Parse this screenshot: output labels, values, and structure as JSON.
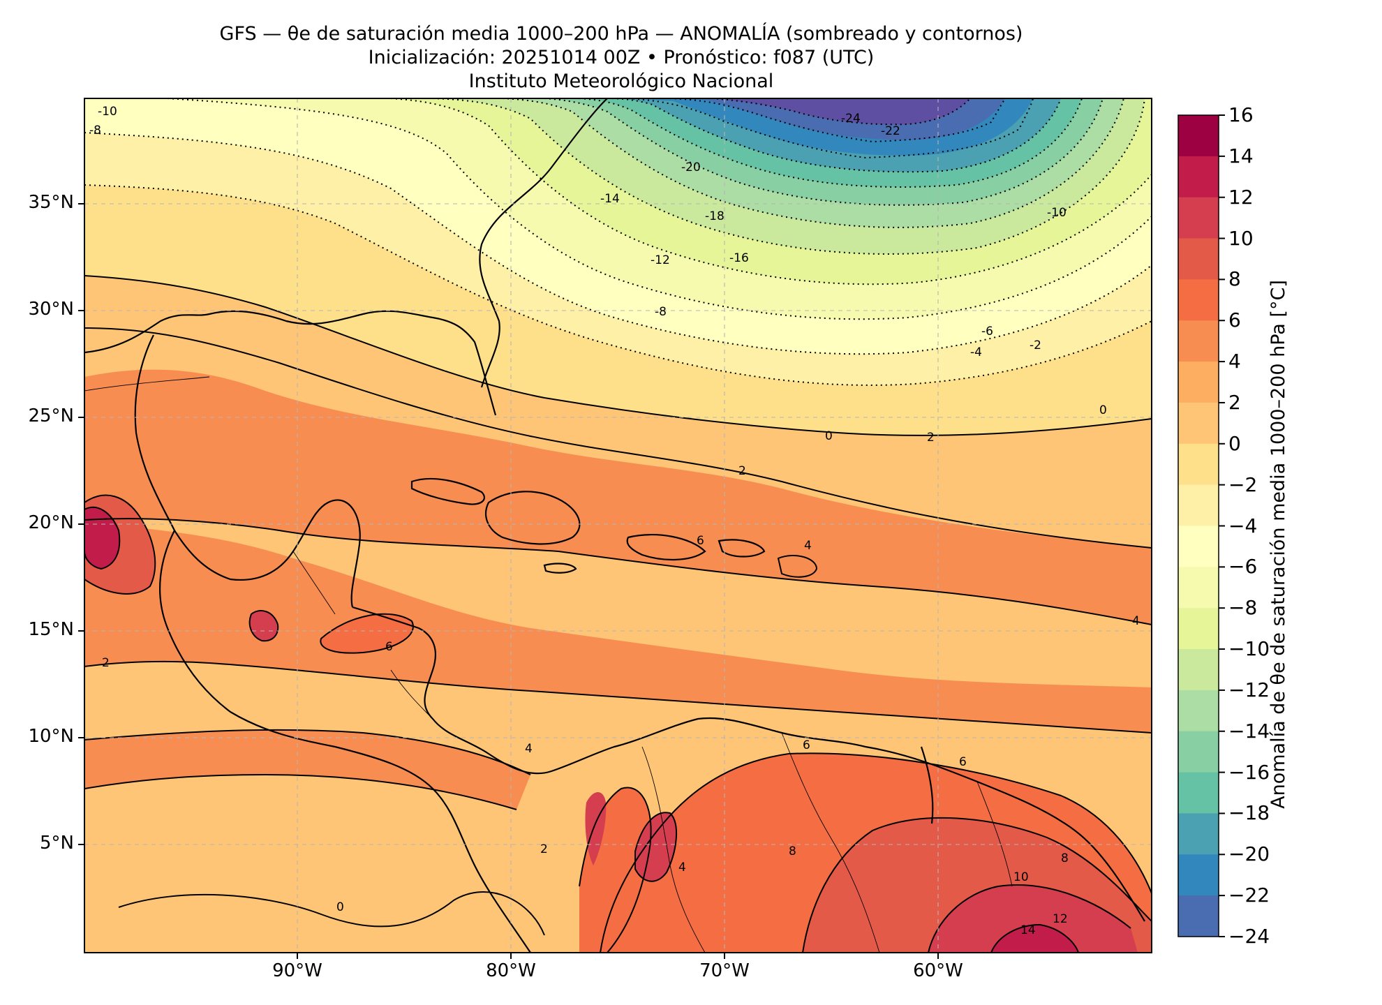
{
  "title": {
    "line1": "GFS — θe de saturación media 1000–200 hPa — ANOMALÍA (sombreado y contornos)",
    "line2": "Inicialización: 20251014 00Z   •   Pronóstico: f087 (UTC)",
    "line3": "Instituto Meteorológico Nacional"
  },
  "map": {
    "lon_range": [
      -100,
      -50
    ],
    "lat_range": [
      0,
      40
    ],
    "lon_ticks": [
      "90°W",
      "80°W",
      "70°W",
      "60°W"
    ],
    "lat_ticks": [
      "35°N",
      "30°N",
      "25°N",
      "20°N",
      "15°N",
      "10°N",
      "5°N"
    ],
    "gridlines": true
  },
  "colorbar": {
    "label": "Anomalía de θe de saturación media 1000–200 hPa [°C]",
    "min": -24,
    "max": 16,
    "step": 2,
    "tick_labels": [
      "16",
      "14",
      "12",
      "10",
      "8",
      "6",
      "4",
      "2",
      "0",
      "−2",
      "−4",
      "−6",
      "−8",
      "−10",
      "−12",
      "−14",
      "−16",
      "−18",
      "−20",
      "−22",
      "−24"
    ],
    "colors": [
      "#9e0142",
      "#c21c4a",
      "#d53e4f",
      "#e45a49",
      "#f46d43",
      "#f88d52",
      "#fdae61",
      "#fdc575",
      "#fee08b",
      "#fef0a7",
      "#ffffbf",
      "#f5faae",
      "#e6f598",
      "#cbe99d",
      "#abdda4",
      "#88cfa4",
      "#66c2a5",
      "#4ba0b1",
      "#3288bd",
      "#4a6cb0",
      "#5e4fa2"
    ]
  },
  "contour_labels": [
    "-10",
    "-8",
    "-24",
    "-22",
    "-20",
    "-18",
    "-16",
    "-14",
    "-12",
    "-10",
    "-8",
    "-6",
    "-4",
    "-2",
    "0",
    "2",
    "2",
    "4",
    "4",
    "6",
    "6",
    "8",
    "10",
    "12",
    "14",
    "0",
    "2",
    "4",
    "6",
    "8",
    "6",
    "4",
    "2",
    "0"
  ]
}
